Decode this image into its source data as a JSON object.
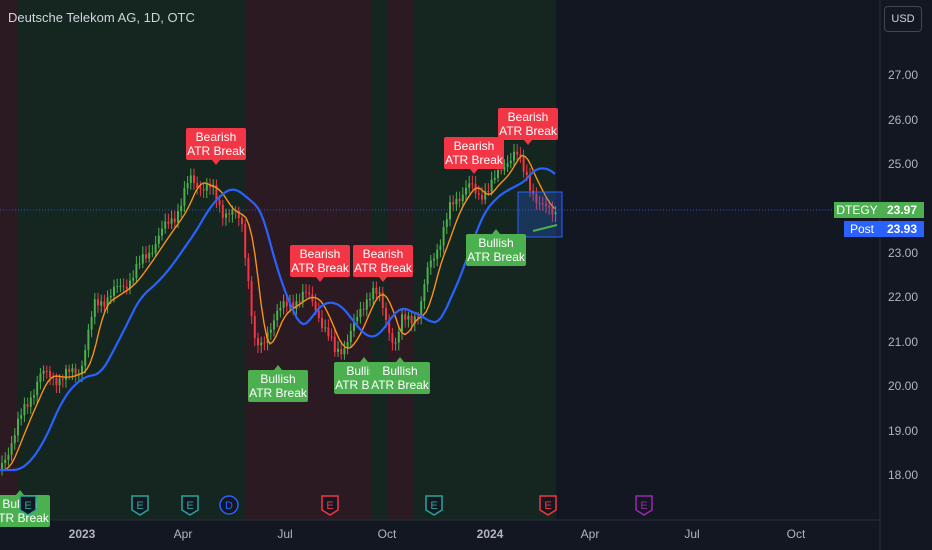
{
  "header": {
    "title": "Deutsche Telekom AG, 1D, OTC",
    "currency": "USD"
  },
  "price_axis": {
    "ticks": [
      "27.00",
      "26.00",
      "25.00",
      "24.00",
      "23.00",
      "22.00",
      "21.00",
      "20.00",
      "19.00",
      "18.00"
    ],
    "last": {
      "symbol": "DTEGY",
      "value": "23.97",
      "color": "#4caf50"
    },
    "post": {
      "symbol": "Post",
      "value": "23.93",
      "color": "#2962ff"
    }
  },
  "time_axis": {
    "ticks": [
      "2023",
      "Apr",
      "Jul",
      "Oct",
      "2024",
      "Apr",
      "Jul",
      "Oct"
    ]
  },
  "signals": [
    {
      "kind": "bearish",
      "line1": "Bearish",
      "line2": "ATR Break"
    },
    {
      "kind": "bearish",
      "line1": "Bearish",
      "line2": "ATR Break"
    },
    {
      "kind": "bearish",
      "line1": "Bearish",
      "line2": "ATR Break"
    },
    {
      "kind": "bearish",
      "line1": "Bearish",
      "line2": "ATR Break"
    },
    {
      "kind": "bearish",
      "line1": "Bearish",
      "line2": "ATR Break"
    },
    {
      "kind": "bullish",
      "line1": "Bullish",
      "line2": "ATR Break"
    },
    {
      "kind": "bullish",
      "line1": "Bullish",
      "line2": "ATR Break"
    },
    {
      "kind": "bullish",
      "line1": "Bullish",
      "line2": "ATR Break"
    },
    {
      "kind": "bullish",
      "line1": "Bullish",
      "line2": "ATR Break"
    },
    {
      "kind": "bullish",
      "line1": "Bullish",
      "line2": "ATR Break"
    }
  ],
  "events": [
    "E",
    "E",
    "E",
    "D",
    "E",
    "E",
    "E",
    "E",
    "E"
  ],
  "colors": {
    "bull": "#4caf50",
    "bear": "#f23645",
    "fast_ma": "#f7931a",
    "slow_ma": "#2962ff",
    "bg": "#131722"
  }
}
